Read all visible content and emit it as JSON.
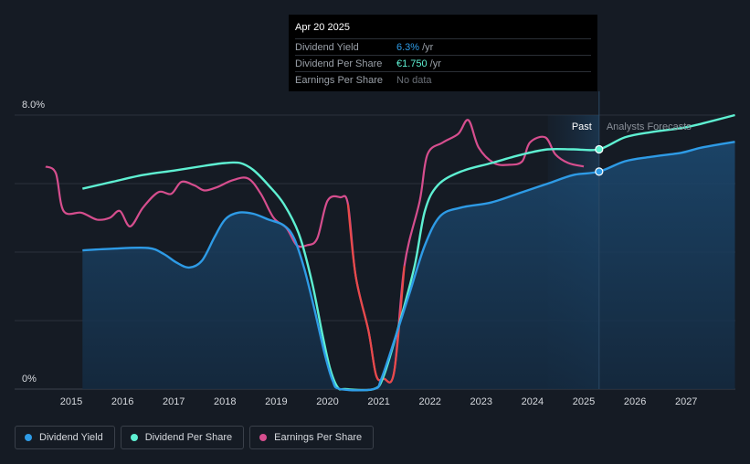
{
  "tooltip": {
    "date": "Apr 20 2025",
    "rows": [
      {
        "name": "Dividend Yield",
        "value": "6.3%",
        "unit": "/yr",
        "color": "#2e9be6"
      },
      {
        "name": "Dividend Per Share",
        "value": "€1.750",
        "unit": "/yr",
        "color": "#5ef0d2"
      },
      {
        "name": "Earnings Per Share",
        "value": "No data",
        "unit": "",
        "color": "#6b7078"
      }
    ]
  },
  "zones": {
    "past": "Past",
    "forecast": "Analysts Forecasts"
  },
  "legend": [
    {
      "label": "Dividend Yield",
      "color": "#2e9be6"
    },
    {
      "label": "Dividend Per Share",
      "color": "#5ef0d2"
    },
    {
      "label": "Earnings Per Share",
      "color": "#d64e8e"
    }
  ],
  "chart_data": {
    "type": "line",
    "x_ticks": [
      "2015",
      "2016",
      "2017",
      "2018",
      "2019",
      "2020",
      "2021",
      "2022",
      "2023",
      "2024",
      "2025",
      "2026",
      "2027"
    ],
    "y_tick_labels": [
      "8.0%",
      "0%"
    ],
    "ylim": [
      0,
      8
    ],
    "xlim": [
      2014.3,
      2027.95
    ],
    "past_forecast_boundary": 2025.3,
    "forecast_shade_start": 2024.3,
    "series": [
      {
        "name": "Dividend Yield",
        "color": "#2e9be6",
        "area": true,
        "points": [
          [
            2015.22,
            4.05
          ],
          [
            2015.8,
            4.1
          ],
          [
            2016.5,
            4.12
          ],
          [
            2016.8,
            3.95
          ],
          [
            2017.05,
            3.7
          ],
          [
            2017.3,
            3.55
          ],
          [
            2017.55,
            3.75
          ],
          [
            2017.8,
            4.45
          ],
          [
            2018.0,
            4.95
          ],
          [
            2018.25,
            5.15
          ],
          [
            2018.55,
            5.12
          ],
          [
            2018.85,
            4.95
          ],
          [
            2019.15,
            4.78
          ],
          [
            2019.35,
            4.4
          ],
          [
            2019.55,
            3.5
          ],
          [
            2019.75,
            2.3
          ],
          [
            2019.95,
            1.0
          ],
          [
            2020.1,
            0.25
          ],
          [
            2020.25,
            0.0
          ],
          [
            2020.9,
            0.0
          ],
          [
            2021.05,
            0.3
          ],
          [
            2021.3,
            1.4
          ],
          [
            2021.6,
            2.8
          ],
          [
            2021.9,
            4.2
          ],
          [
            2022.2,
            5.05
          ],
          [
            2022.6,
            5.3
          ],
          [
            2023.2,
            5.45
          ],
          [
            2023.8,
            5.75
          ],
          [
            2024.3,
            6.0
          ],
          [
            2024.8,
            6.25
          ],
          [
            2025.3,
            6.35
          ],
          [
            2025.8,
            6.65
          ],
          [
            2026.3,
            6.78
          ],
          [
            2026.9,
            6.9
          ],
          [
            2027.3,
            7.05
          ],
          [
            2027.95,
            7.22
          ]
        ]
      },
      {
        "name": "Dividend Per Share",
        "color": "#5ef0d2",
        "area": false,
        "points": [
          [
            2015.22,
            5.85
          ],
          [
            2015.8,
            6.05
          ],
          [
            2016.4,
            6.25
          ],
          [
            2017.0,
            6.38
          ],
          [
            2017.6,
            6.52
          ],
          [
            2018.0,
            6.6
          ],
          [
            2018.3,
            6.6
          ],
          [
            2018.55,
            6.4
          ],
          [
            2018.85,
            5.95
          ],
          [
            2019.15,
            5.4
          ],
          [
            2019.45,
            4.5
          ],
          [
            2019.7,
            3.1
          ],
          [
            2019.9,
            1.6
          ],
          [
            2020.05,
            0.6
          ],
          [
            2020.2,
            0.05
          ],
          [
            2020.35,
            0.0
          ],
          [
            2020.9,
            0.0
          ],
          [
            2021.1,
            0.4
          ],
          [
            2021.4,
            1.9
          ],
          [
            2021.7,
            3.6
          ],
          [
            2021.9,
            5.2
          ],
          [
            2022.15,
            5.95
          ],
          [
            2022.6,
            6.35
          ],
          [
            2023.2,
            6.6
          ],
          [
            2023.8,
            6.85
          ],
          [
            2024.3,
            7.0
          ],
          [
            2024.8,
            7.0
          ],
          [
            2025.3,
            7.0
          ],
          [
            2025.8,
            7.35
          ],
          [
            2026.3,
            7.5
          ],
          [
            2026.9,
            7.62
          ],
          [
            2027.3,
            7.75
          ],
          [
            2027.95,
            8.0
          ]
        ]
      },
      {
        "name": "Earnings Per Share",
        "color": "#d64e8e",
        "area": false,
        "points": [
          [
            2014.5,
            6.5
          ],
          [
            2014.7,
            6.3
          ],
          [
            2014.85,
            5.2
          ],
          [
            2015.2,
            5.15
          ],
          [
            2015.5,
            4.95
          ],
          [
            2015.75,
            5.0
          ],
          [
            2015.95,
            5.2
          ],
          [
            2016.15,
            4.75
          ],
          [
            2016.4,
            5.3
          ],
          [
            2016.7,
            5.75
          ],
          [
            2016.95,
            5.7
          ],
          [
            2017.15,
            6.05
          ],
          [
            2017.4,
            5.95
          ],
          [
            2017.6,
            5.8
          ],
          [
            2017.85,
            5.9
          ],
          [
            2018.15,
            6.1
          ],
          [
            2018.45,
            6.15
          ],
          [
            2018.7,
            5.7
          ],
          [
            2018.95,
            5.0
          ],
          [
            2019.2,
            4.7
          ],
          [
            2019.4,
            4.2
          ],
          [
            2019.6,
            4.2
          ],
          [
            2019.8,
            4.4
          ],
          [
            2020.0,
            5.5
          ],
          [
            2020.25,
            5.6
          ],
          [
            2020.4,
            5.4
          ],
          [
            2020.55,
            3.3
          ],
          [
            2020.8,
            1.7
          ],
          [
            2020.95,
            0.4
          ],
          [
            2021.1,
            0.3
          ],
          [
            2021.3,
            0.5
          ],
          [
            2021.5,
            3.6
          ],
          [
            2021.8,
            5.5
          ],
          [
            2021.95,
            6.85
          ],
          [
            2022.25,
            7.2
          ],
          [
            2022.55,
            7.45
          ],
          [
            2022.75,
            7.85
          ],
          [
            2022.95,
            7.05
          ],
          [
            2023.25,
            6.6
          ],
          [
            2023.55,
            6.55
          ],
          [
            2023.8,
            6.65
          ],
          [
            2023.95,
            7.2
          ],
          [
            2024.25,
            7.35
          ],
          [
            2024.45,
            6.85
          ],
          [
            2024.7,
            6.6
          ],
          [
            2025.0,
            6.5
          ]
        ]
      }
    ],
    "markers": [
      {
        "series": "Dividend Per Share",
        "x": 2025.3,
        "y": 7.0
      },
      {
        "series": "Dividend Yield",
        "x": 2025.3,
        "y": 6.35
      }
    ]
  }
}
